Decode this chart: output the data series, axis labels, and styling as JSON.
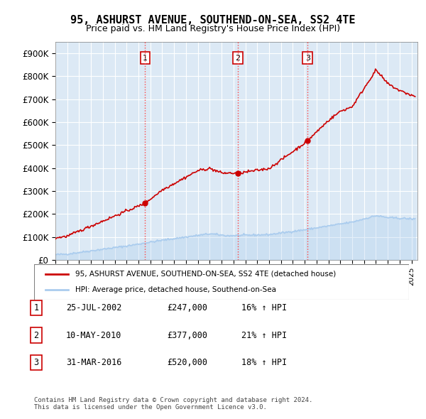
{
  "title": "95, ASHURST AVENUE, SOUTHEND-ON-SEA, SS2 4TE",
  "subtitle": "Price paid vs. HM Land Registry's House Price Index (HPI)",
  "ylabel_vals": [
    "£0",
    "£100K",
    "£200K",
    "£300K",
    "£400K",
    "£500K",
    "£600K",
    "£700K",
    "£800K",
    "£900K"
  ],
  "yticks": [
    0,
    100000,
    200000,
    300000,
    400000,
    500000,
    600000,
    700000,
    800000,
    900000
  ],
  "xlim_start": 1995.0,
  "xlim_end": 2025.5,
  "ylim": [
    0,
    950000
  ],
  "sales": [
    {
      "year": 2002.56,
      "price": 247000,
      "label": "1"
    },
    {
      "year": 2010.36,
      "price": 377000,
      "label": "2"
    },
    {
      "year": 2016.25,
      "price": 520000,
      "label": "3"
    }
  ],
  "vline_color": "#ff4444",
  "vline_style": ":",
  "sale_marker_color": "#cc0000",
  "hpi_color": "#aaccee",
  "property_color": "#cc0000",
  "legend_items": [
    "95, ASHURST AVENUE, SOUTHEND-ON-SEA, SS2 4TE (detached house)",
    "HPI: Average price, detached house, Southend-on-Sea"
  ],
  "table_rows": [
    [
      "1",
      "25-JUL-2002",
      "£247,000",
      "16% ↑ HPI"
    ],
    [
      "2",
      "10-MAY-2010",
      "£377,000",
      "21% ↑ HPI"
    ],
    [
      "3",
      "31-MAR-2016",
      "£520,000",
      "18% ↑ HPI"
    ]
  ],
  "footer": "Contains HM Land Registry data © Crown copyright and database right 2024.\nThis data is licensed under the Open Government Licence v3.0.",
  "background_color": "#dce9f5",
  "plot_bg_color": "#dce9f5"
}
